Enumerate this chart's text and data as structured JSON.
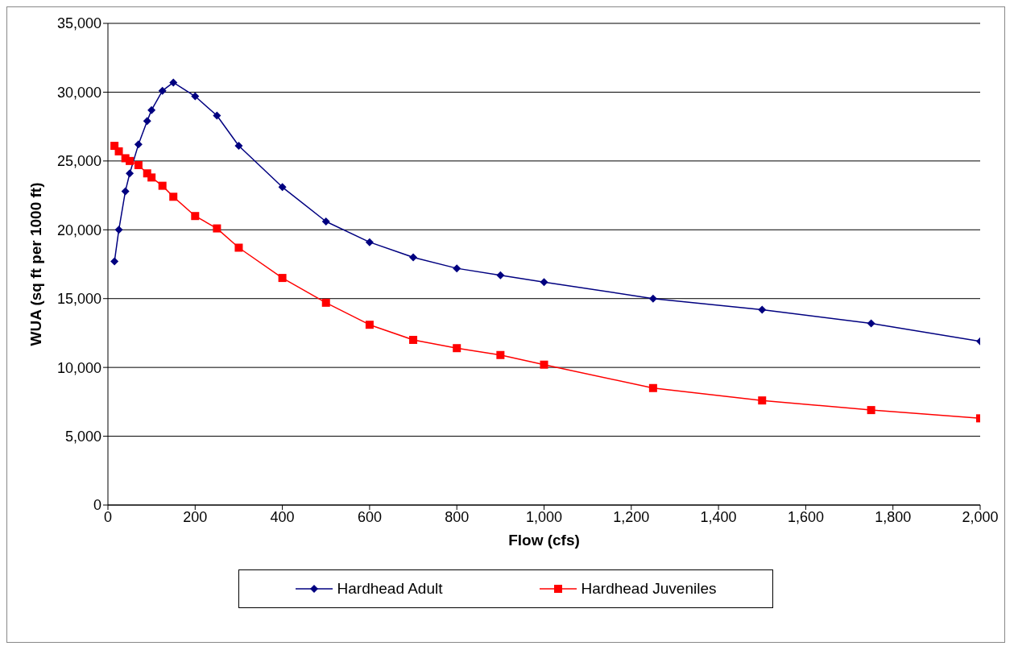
{
  "chart_data": {
    "type": "line",
    "xlabel": "Flow (cfs)",
    "ylabel": "WUA (sq ft per 1000 ft)",
    "x": [
      15,
      25,
      40,
      50,
      70,
      90,
      100,
      125,
      150,
      200,
      250,
      300,
      400,
      500,
      600,
      700,
      800,
      900,
      1000,
      1250,
      1500,
      1750,
      2000
    ],
    "series": [
      {
        "name": "Hardhead Adult",
        "color": "#000080",
        "marker": "diamond",
        "values": [
          17700,
          20000,
          22800,
          24100,
          26200,
          27900,
          28700,
          30100,
          30700,
          29700,
          28300,
          26100,
          23100,
          20600,
          19100,
          18000,
          17200,
          16700,
          16200,
          15000,
          14200,
          13200,
          11900
        ]
      },
      {
        "name": "Hardhead Juveniles",
        "color": "#ff0000",
        "marker": "square",
        "values": [
          26100,
          25700,
          25200,
          25000,
          24700,
          24100,
          23800,
          23200,
          22400,
          21000,
          20100,
          18700,
          16500,
          14700,
          13100,
          12000,
          11400,
          10900,
          10200,
          8500,
          7600,
          6900,
          6300
        ]
      }
    ],
    "xlim": [
      0,
      2000
    ],
    "xticks": [
      {
        "value": 0,
        "label": "0"
      },
      {
        "value": 200,
        "label": "200"
      },
      {
        "value": 400,
        "label": "400"
      },
      {
        "value": 600,
        "label": "600"
      },
      {
        "value": 800,
        "label": "800"
      },
      {
        "value": 1000,
        "label": "1,000"
      },
      {
        "value": 1200,
        "label": "1,200"
      },
      {
        "value": 1400,
        "label": "1,400"
      },
      {
        "value": 1600,
        "label": "1,600"
      },
      {
        "value": 1800,
        "label": "1,800"
      },
      {
        "value": 2000,
        "label": "2,000"
      }
    ],
    "ylim": [
      0,
      35000
    ],
    "yticks": [
      {
        "value": 0,
        "label": "0"
      },
      {
        "value": 5000,
        "label": "5,000"
      },
      {
        "value": 10000,
        "label": "10,000"
      },
      {
        "value": 15000,
        "label": "15,000"
      },
      {
        "value": 20000,
        "label": "20,000"
      },
      {
        "value": 25000,
        "label": "25,000"
      },
      {
        "value": 30000,
        "label": "30,000"
      },
      {
        "value": 35000,
        "label": "35,000"
      }
    ],
    "grid": "y",
    "legend": "bottom"
  }
}
